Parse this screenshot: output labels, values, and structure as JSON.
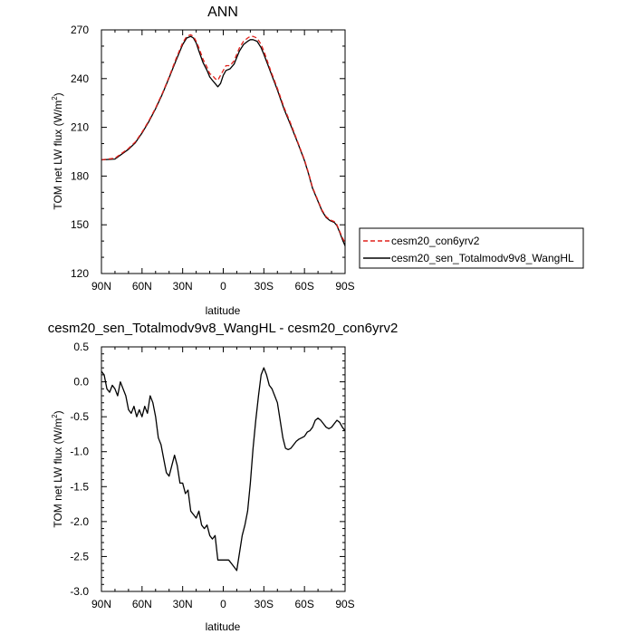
{
  "chart_data": [
    {
      "type": "line",
      "title": "ANN",
      "xlabel": "latitude",
      "ylabel": "TOM net LW flux (W/m",
      "ylabel_sup": "2",
      "ylabel_close": ")",
      "xlim": [
        90,
        -90
      ],
      "ylim": [
        120,
        270
      ],
      "xticks": [
        {
          "value": 90,
          "label": "90N"
        },
        {
          "value": 60,
          "label": "60N"
        },
        {
          "value": 30,
          "label": "30N"
        },
        {
          "value": 0,
          "label": "0"
        },
        {
          "value": -30,
          "label": "30S"
        },
        {
          "value": -60,
          "label": "60S"
        },
        {
          "value": -90,
          "label": "90S"
        }
      ],
      "yticks": [
        120,
        150,
        180,
        210,
        240,
        270
      ],
      "legend_placement": "right, outside plot",
      "series": [
        {
          "name": "cesm20_con6yrv2",
          "color": "#e0201b",
          "style": "dashed",
          "x": [
            90,
            80,
            75,
            70,
            65,
            60,
            55,
            50,
            45,
            40,
            35,
            30,
            27,
            24,
            22,
            20,
            18,
            15,
            12,
            10,
            8,
            6,
            4,
            2,
            0,
            -2,
            -5,
            -8,
            -10,
            -12,
            -15,
            -18,
            -20,
            -22,
            -25,
            -28,
            -30,
            -35,
            -40,
            -45,
            -50,
            -55,
            -60,
            -63,
            -66,
            -70,
            -73,
            -76,
            -79,
            -82,
            -84,
            -86,
            -88,
            -90
          ],
          "y": [
            190,
            191,
            194,
            197,
            201,
            207,
            214,
            222,
            231,
            241,
            252,
            262,
            266,
            267,
            266,
            263,
            259,
            252,
            247,
            243,
            242,
            240,
            239,
            242,
            245,
            248,
            248,
            251,
            255,
            259,
            263,
            265,
            266,
            266,
            265,
            261,
            257,
            245,
            234,
            222,
            212,
            201,
            190,
            182,
            173,
            165,
            159,
            155,
            153,
            152,
            150,
            146,
            142,
            139
          ]
        },
        {
          "name": "cesm20_sen_Totalmodv9v8_WangHL",
          "color": "#000000",
          "style": "solid",
          "x": [
            90,
            80,
            75,
            70,
            65,
            60,
            55,
            50,
            45,
            40,
            35,
            30,
            27,
            24,
            22,
            20,
            18,
            15,
            12,
            10,
            8,
            6,
            4,
            2,
            0,
            -2,
            -5,
            -8,
            -10,
            -12,
            -15,
            -18,
            -20,
            -22,
            -25,
            -28,
            -30,
            -35,
            -40,
            -45,
            -50,
            -55,
            -60,
            -63,
            -66,
            -70,
            -73,
            -76,
            -79,
            -82,
            -84,
            -86,
            -88,
            -90
          ],
          "y": [
            190,
            190.5,
            193.5,
            196.5,
            200.5,
            206.5,
            213.5,
            221.5,
            230.5,
            240.5,
            251,
            261,
            265,
            266,
            265,
            262,
            257,
            250,
            245,
            241,
            239,
            237,
            235,
            237,
            242,
            245,
            246,
            249,
            253,
            257,
            261,
            263,
            264,
            264,
            263,
            259,
            255,
            244,
            233,
            221,
            211,
            200.5,
            189.5,
            181.5,
            172.5,
            164.5,
            158.5,
            154.5,
            152.5,
            151.5,
            149.5,
            145.5,
            141,
            137
          ]
        }
      ]
    },
    {
      "type": "line",
      "title": "cesm20_sen_Totalmodv9v8_WangHL - cesm20_con6yrv2",
      "xlabel": "latitude",
      "ylabel": "TOM net LW flux (W/m",
      "ylabel_sup": "2",
      "ylabel_close": ")",
      "xlim": [
        90,
        -90
      ],
      "ylim": [
        -3.0,
        0.5
      ],
      "xticks": [
        {
          "value": 90,
          "label": "90N"
        },
        {
          "value": 60,
          "label": "60N"
        },
        {
          "value": 30,
          "label": "30N"
        },
        {
          "value": 0,
          "label": "0"
        },
        {
          "value": -30,
          "label": "30S"
        },
        {
          "value": -60,
          "label": "60S"
        },
        {
          "value": -90,
          "label": "90S"
        }
      ],
      "yticks": [
        {
          "value": 0.5,
          "label": "0.5"
        },
        {
          "value": 0,
          "label": "0.0"
        },
        {
          "value": -0.5,
          "label": "-0.5"
        },
        {
          "value": -1.0,
          "label": "-1.0"
        },
        {
          "value": -1.5,
          "label": "-1.5"
        },
        {
          "value": -2.0,
          "label": "-2.0"
        },
        {
          "value": -2.5,
          "label": "-2.5"
        },
        {
          "value": -3.0,
          "label": "-3.0"
        }
      ],
      "series": [
        {
          "color": "#000000",
          "style": "solid",
          "x": [
            90,
            88,
            86,
            84,
            82,
            80,
            78,
            76,
            74,
            72,
            70,
            68,
            66,
            64,
            62,
            60,
            58,
            56,
            54,
            52,
            50,
            48,
            46,
            44,
            42,
            40,
            38,
            36,
            34,
            32,
            30,
            28,
            26,
            24,
            22,
            20,
            18,
            16,
            14,
            12,
            10,
            8,
            6,
            4,
            2,
            0,
            -2,
            -4,
            -6,
            -8,
            -10,
            -12,
            -14,
            -16,
            -18,
            -20,
            -22,
            -24,
            -26,
            -28,
            -30,
            -32,
            -34,
            -36,
            -38,
            -40,
            -42,
            -44,
            -46,
            -48,
            -50,
            -52,
            -54,
            -56,
            -58,
            -60,
            -62,
            -64,
            -66,
            -68,
            -70,
            -72,
            -74,
            -76,
            -78,
            -80,
            -82,
            -84,
            -86,
            -88,
            -90
          ],
          "y": [
            0.15,
            0.1,
            -0.1,
            -0.15,
            -0.05,
            -0.1,
            -0.2,
            0.0,
            -0.1,
            -0.2,
            -0.4,
            -0.45,
            -0.35,
            -0.5,
            -0.4,
            -0.5,
            -0.35,
            -0.45,
            -0.2,
            -0.3,
            -0.5,
            -0.8,
            -0.9,
            -1.1,
            -1.3,
            -1.35,
            -1.2,
            -1.05,
            -1.2,
            -1.45,
            -1.45,
            -1.6,
            -1.55,
            -1.85,
            -1.9,
            -1.95,
            -1.85,
            -2.05,
            -2.1,
            -2.05,
            -2.2,
            -2.25,
            -2.2,
            -2.55,
            -2.55,
            -2.55,
            -2.55,
            -2.55,
            -2.6,
            -2.65,
            -2.7,
            -2.45,
            -2.2,
            -2.05,
            -1.85,
            -1.45,
            -0.95,
            -0.55,
            -0.2,
            0.1,
            0.2,
            0.1,
            -0.05,
            -0.1,
            -0.2,
            -0.3,
            -0.55,
            -0.8,
            -0.95,
            -0.97,
            -0.95,
            -0.9,
            -0.85,
            -0.82,
            -0.8,
            -0.78,
            -0.72,
            -0.7,
            -0.65,
            -0.55,
            -0.52,
            -0.55,
            -0.6,
            -0.65,
            -0.67,
            -0.65,
            -0.6,
            -0.55,
            -0.58,
            -0.65,
            -0.7
          ]
        }
      ]
    }
  ]
}
